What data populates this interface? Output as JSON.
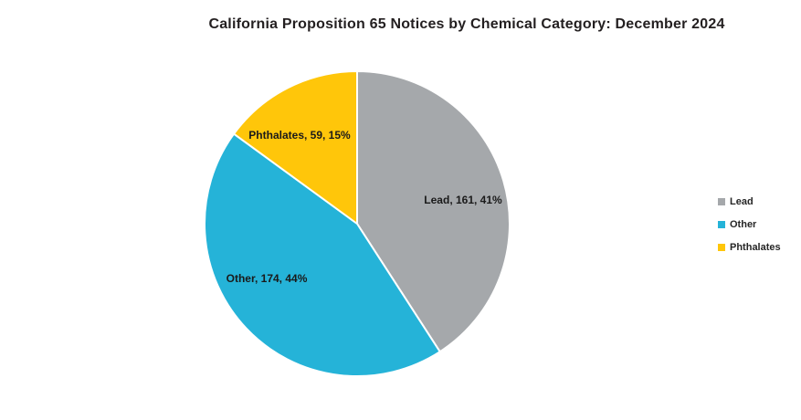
{
  "title": "California Proposition 65 Notices by Chemical Category: December 2024",
  "chart_data": {
    "type": "pie",
    "title": "California Proposition 65 Notices by Chemical Category: December 2024",
    "categories": [
      "Lead",
      "Other",
      "Phthalates"
    ],
    "values": [
      161,
      174,
      59
    ],
    "percents": [
      41,
      44,
      15
    ],
    "colors": [
      "#A5A8AB",
      "#25B3D8",
      "#FFC60A"
    ],
    "slice_labels": [
      "Lead, 161, 41%",
      "Other, 174, 44%",
      "Phthalates, 59, 15%"
    ],
    "start_angle_deg": 0,
    "direction": "clockwise",
    "legend_position": "right",
    "legend_items": [
      "Lead",
      "Other",
      "Phthalates"
    ],
    "separator_color": "#FFFFFF",
    "title_color": "#231F20",
    "label_color": "#1a1a1a"
  }
}
